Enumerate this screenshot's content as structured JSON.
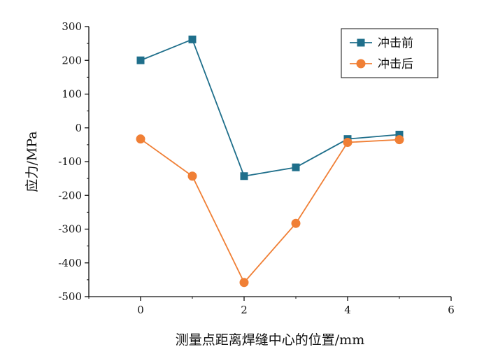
{
  "chart_data": {
    "type": "line",
    "xlabel": "测量点距离焊缝中心的位置/mm",
    "ylabel": "应力/MPa",
    "xlim": [
      -1,
      6
    ],
    "ylim": [
      -500,
      300
    ],
    "xticks": [
      0,
      2,
      4,
      6
    ],
    "yticks": [
      -500,
      -400,
      -300,
      -200,
      -100,
      0,
      100,
      200,
      300
    ],
    "grid": false,
    "legend_position": "top-right",
    "series": [
      {
        "name": "冲击前",
        "marker": "square",
        "color": "#1f6f8b",
        "x": [
          0,
          1,
          2,
          3,
          4,
          5
        ],
        "y": [
          200,
          262,
          -143,
          -117,
          -33,
          -20
        ]
      },
      {
        "name": "冲击后",
        "marker": "circle",
        "color": "#f07f35",
        "x": [
          0,
          1,
          2,
          3,
          4,
          5
        ],
        "y": [
          -33,
          -143,
          -458,
          -283,
          -43,
          -35
        ]
      }
    ]
  }
}
